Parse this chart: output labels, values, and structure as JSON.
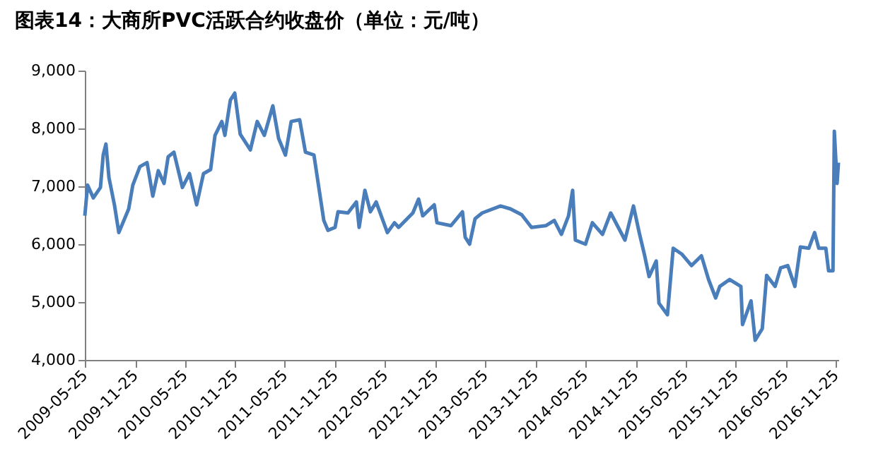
{
  "chart_data": {
    "type": "line",
    "title": "图表14：大商所PVC活跃合约收盘价（单位：元/吨）",
    "x": [
      "2009-05-25",
      "2009-06-04",
      "2009-06-25",
      "2009-07-21",
      "2009-07-31",
      "2009-08-10",
      "2009-08-21",
      "2009-09-10",
      "2009-09-26",
      "2009-11-01",
      "2009-11-16",
      "2009-12-12",
      "2010-01-07",
      "2010-01-28",
      "2010-02-17",
      "2010-03-10",
      "2010-03-25",
      "2010-04-15",
      "2010-05-16",
      "2010-06-11",
      "2010-07-07",
      "2010-08-01",
      "2010-08-27",
      "2010-09-12",
      "2010-10-07",
      "2010-10-18",
      "2010-11-07",
      "2010-11-23",
      "2010-12-13",
      "2011-01-19",
      "2011-02-13",
      "2011-03-11",
      "2011-04-11",
      "2011-05-02",
      "2011-05-27",
      "2011-06-17",
      "2011-07-18",
      "2011-08-08",
      "2011-09-08",
      "2011-10-14",
      "2011-10-29",
      "2011-11-24",
      "2011-12-05",
      "2012-01-10",
      "2012-02-10",
      "2012-02-20",
      "2012-03-12",
      "2012-04-01",
      "2012-04-22",
      "2012-06-02",
      "2012-06-28",
      "2012-07-13",
      "2012-09-03",
      "2012-09-24",
      "2012-10-09",
      "2012-11-20",
      "2012-11-30",
      "2013-01-20",
      "2013-03-03",
      "2013-03-13",
      "2013-03-29",
      "2013-04-18",
      "2013-05-14",
      "2013-07-20",
      "2013-08-25",
      "2013-10-05",
      "2013-11-10",
      "2014-01-01",
      "2014-02-01",
      "2014-02-27",
      "2014-03-25",
      "2014-04-09",
      "2014-04-19",
      "2014-05-26",
      "2014-06-20",
      "2014-07-27",
      "2014-08-26",
      "2014-10-17",
      "2014-11-17",
      "2014-12-08",
      "2014-12-28",
      "2015-01-13",
      "2015-02-08",
      "2015-02-18",
      "2015-03-21",
      "2015-04-11",
      "2015-05-12",
      "2015-06-17",
      "2015-07-23",
      "2015-08-18",
      "2015-09-13",
      "2015-09-28",
      "2015-11-03",
      "2015-12-14",
      "2015-12-20",
      "2016-01-20",
      "2016-02-04",
      "2016-03-01",
      "2016-03-17",
      "2016-04-17",
      "2016-05-07",
      "2016-06-02",
      "2016-06-28",
      "2016-07-18",
      "2016-08-18",
      "2016-09-08",
      "2016-09-23",
      "2016-10-19",
      "2016-10-29",
      "2016-11-14",
      "2016-11-19",
      "2016-11-29",
      "2016-12-04"
    ],
    "series": [
      {
        "color": "#4a7ebb",
        "values": [
          6490,
          7020,
          6800,
          6980,
          7540,
          7730,
          7150,
          6680,
          6200,
          6610,
          7020,
          7340,
          7410,
          6830,
          7270,
          7050,
          7510,
          7590,
          6980,
          7220,
          6680,
          7220,
          7290,
          7880,
          8120,
          7880,
          8490,
          8610,
          7900,
          7630,
          8120,
          7880,
          8390,
          7830,
          7540,
          8120,
          8150,
          7590,
          7540,
          6410,
          6240,
          6290,
          6560,
          6540,
          6730,
          6290,
          6930,
          6560,
          6730,
          6200,
          6370,
          6290,
          6540,
          6780,
          6490,
          6680,
          6370,
          6320,
          6560,
          6120,
          6000,
          6440,
          6540,
          6660,
          6610,
          6510,
          6290,
          6320,
          6410,
          6170,
          6490,
          6930,
          6070,
          6000,
          6370,
          6170,
          6540,
          6070,
          6660,
          6200,
          5800,
          5440,
          5710,
          4980,
          4780,
          5930,
          5830,
          5630,
          5800,
          5390,
          5070,
          5270,
          5390,
          5270,
          4610,
          5020,
          4340,
          4540,
          5460,
          5270,
          5590,
          5630,
          5270,
          5950,
          5930,
          6200,
          5930,
          5930,
          5540,
          5540,
          7950,
          7050,
          7410
        ]
      }
    ],
    "xlim": [
      "2009-05-25",
      "2016-12-04"
    ],
    "xticks": [
      "2009-05-25",
      "2009-11-25",
      "2010-05-25",
      "2010-11-25",
      "2011-05-25",
      "2011-11-25",
      "2012-05-25",
      "2012-11-25",
      "2013-05-25",
      "2013-11-25",
      "2014-05-25",
      "2014-11-25",
      "2015-05-25",
      "2015-11-25",
      "2016-05-25",
      "2016-11-25"
    ],
    "ylim": [
      4000,
      9000
    ],
    "yticks": [
      {
        "value": 4000,
        "label": "4,000"
      },
      {
        "value": 5000,
        "label": "5,000"
      },
      {
        "value": 6000,
        "label": "6,000"
      },
      {
        "value": 7000,
        "label": "7,000"
      },
      {
        "value": 8000,
        "label": "8,000"
      },
      {
        "value": 9000,
        "label": "9,000"
      }
    ],
    "grid": false,
    "legend": false,
    "line_style": "solid",
    "marker": "none"
  }
}
